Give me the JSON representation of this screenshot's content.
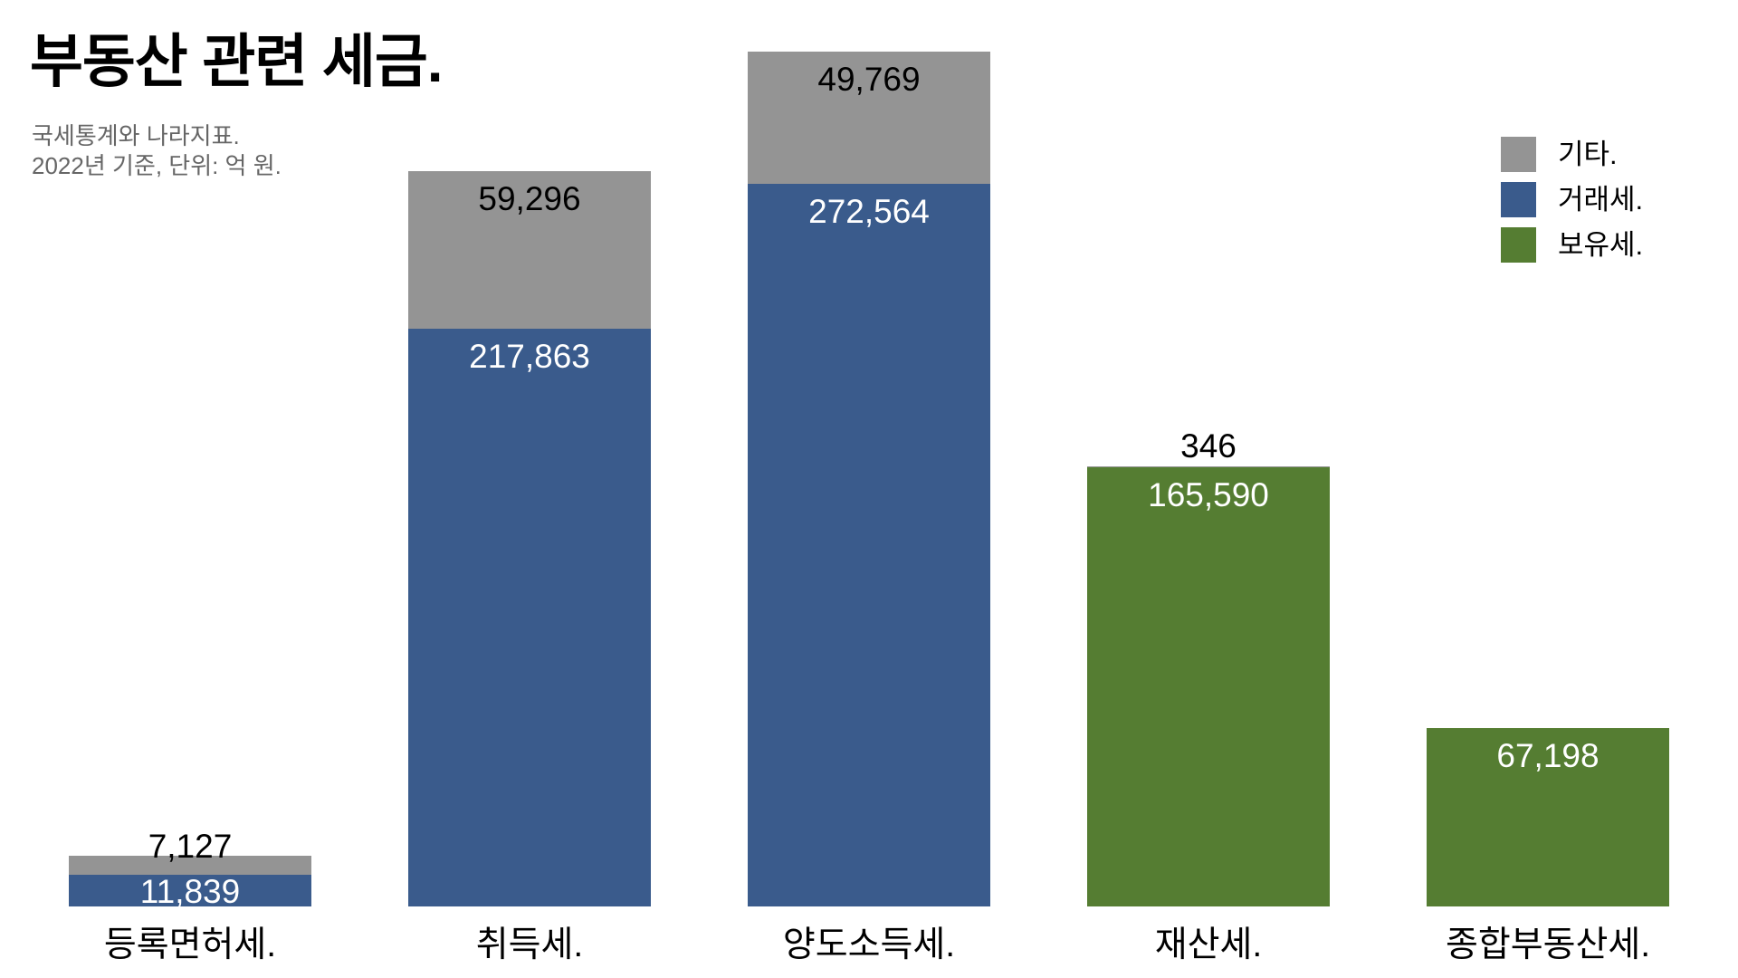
{
  "chart_data": {
    "type": "bar",
    "stacked": true,
    "title": "부동산 관련 세금.",
    "subtitle_lines": [
      "국세통계와 나라지표.",
      "2022년 기준, 단위: 억 원."
    ],
    "categories": [
      "등록면허세.",
      "취득세.",
      "양도소득세.",
      "재산세.",
      "종합부동산세."
    ],
    "series": [
      {
        "name": "기타.",
        "color_key": "other",
        "values": [
          7127,
          59296,
          49769,
          346,
          0
        ]
      },
      {
        "name": "거래세.",
        "color_key": "transaction",
        "values": [
          11839,
          217863,
          272564,
          0,
          0
        ]
      },
      {
        "name": "보유세.",
        "color_key": "holding",
        "values": [
          0,
          0,
          0,
          165590,
          67198
        ]
      }
    ],
    "legend_position": "top-right",
    "grid": false,
    "axis_lines": false,
    "ylim": [
      0,
      322333
    ]
  },
  "legend": {
    "items": [
      {
        "label": "기타.",
        "color_key": "other"
      },
      {
        "label": "거래세.",
        "color_key": "transaction"
      },
      {
        "label": "보유세.",
        "color_key": "holding"
      }
    ]
  },
  "colors": {
    "other": "#949494",
    "transaction": "#3A5B8C",
    "holding": "#557D32",
    "title": "#000000",
    "subtitle": "#666666",
    "label_dark": "#000000",
    "label_light": "#FFFFFF",
    "background": "#FFFFFF"
  }
}
